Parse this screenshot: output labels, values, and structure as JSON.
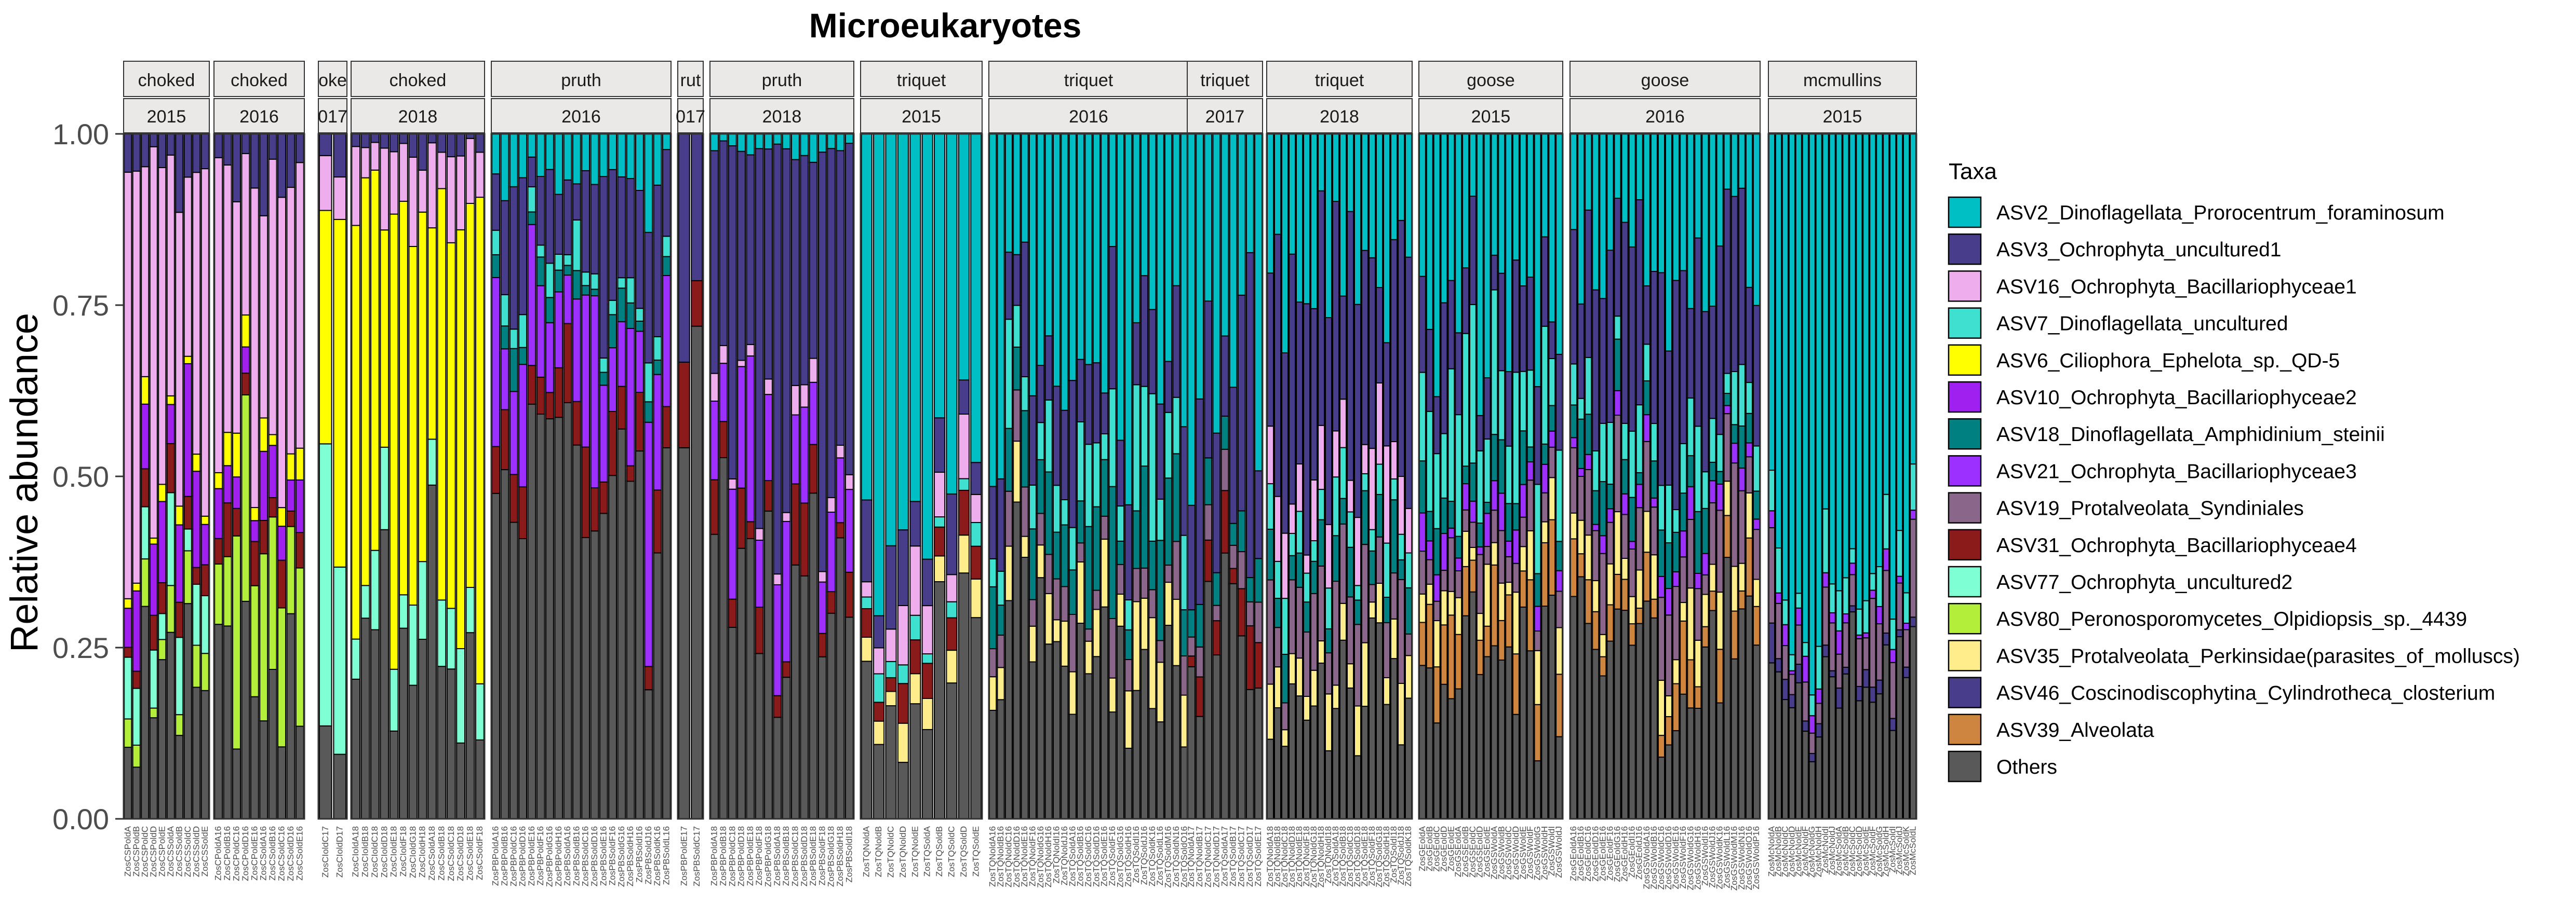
{
  "chart_data": {
    "type": "bar",
    "stacked": true,
    "title": "Microeukaryotes",
    "ylabel": "Relative abundance",
    "xlabel": "",
    "ylim": [
      0,
      1
    ],
    "yticks": [
      "0.00",
      "0.25",
      "0.50",
      "0.75",
      "1.00"
    ],
    "yticks_values": [
      0,
      0.25,
      0.5,
      0.75,
      1.0
    ],
    "grid": false,
    "legend_position": "right",
    "legend_title": "Taxa",
    "taxa": [
      {
        "name": "ASV2_Dinoflagellata_Prorocentrum_foraminosum",
        "color": "#00BFC4"
      },
      {
        "name": "ASV3_Ochrophyta_uncultured1",
        "color": "#483D8B"
      },
      {
        "name": "ASV16_Ochrophyta_Bacillariophyceae1",
        "color": "#EEAEEE"
      },
      {
        "name": "ASV7_Dinoflagellata_uncultured",
        "color": "#40E0D0"
      },
      {
        "name": "ASV6_Ciliophora_Ephelota_sp._QD-5",
        "color": "#FFFF00"
      },
      {
        "name": "ASV10_Ochrophyta_Bacillariophyceae2",
        "color": "#A020F0"
      },
      {
        "name": "ASV18_Dinoflagellata_Amphidinium_steinii",
        "color": "#008080"
      },
      {
        "name": "ASV21_Ochrophyta_Bacillariophyceae3",
        "color": "#9B30FF"
      },
      {
        "name": "ASV19_Protalveolata_Syndiniales",
        "color": "#8B668B"
      },
      {
        "name": "ASV31_Ochrophyta_Bacillariophyceae4",
        "color": "#8B1A1A"
      },
      {
        "name": "ASV77_Ochrophyta_uncultured2",
        "color": "#7FFFD4"
      },
      {
        "name": "ASV80_Peronosporomycetes_Olpidiopsis_sp._4439",
        "color": "#B3EE3A"
      },
      {
        "name": "ASV35_Protalveolata_Perkinsidae(parasites_of_molluscs)",
        "color": "#FFEC8B"
      },
      {
        "name": "ASV46_Coscinodiscophytina_Cylindrotheca_closterium",
        "color": "#483D8B"
      },
      {
        "name": "ASV39_Alveolata",
        "color": "#CD853F"
      },
      {
        "name": "Others",
        "color": "#595959"
      }
    ],
    "facets": [
      {
        "site": "choked",
        "year": "2015",
        "samples": [
          "ZosCSPoldA",
          "ZosCSPoldB",
          "ZosCSPoldC",
          "ZosCSPoldD",
          "ZosCSPoldE",
          "ZosCSSoldA",
          "ZosCSSoldB",
          "ZosCSSoldC",
          "ZosCSSoldD",
          "ZosCSSoldE"
        ]
      },
      {
        "site": "choked",
        "year": "2016",
        "samples": [
          "ZosCPoldA16",
          "ZosCPoldB16",
          "ZosCPoldC16",
          "ZosCPoldD16",
          "ZosCPoldE16",
          "ZosCSoldA16",
          "ZosCSoldB16",
          "ZosCSoldC16",
          "ZosCSoldD16",
          "ZosCSoldE16"
        ]
      },
      {
        "site": "oke",
        "year": "017",
        "samples": [
          "ZosCIoldC17",
          "ZosCIoldD17"
        ]
      },
      {
        "site": "choked",
        "year": "2018",
        "samples": [
          "ZosCIoldA18",
          "ZosCIoldB18",
          "ZosCIoldC18",
          "ZosCIoldD18",
          "ZosCIoldE18",
          "ZosCIoldF18",
          "ZosCIoldG18",
          "ZosCIoldH18",
          "ZosCSoldA18",
          "ZosCSoldB18",
          "ZosCSoldC18",
          "ZosCSoldD18",
          "ZosCSoldE18",
          "ZosCSoldF18"
        ]
      },
      {
        "site": "pruth",
        "year": "2016",
        "samples": [
          "ZosPBPoldA16",
          "ZosPBPoldB16",
          "ZosPBPoldC16",
          "ZosPBPoldD16",
          "ZosPBPoldE16",
          "ZosPBPoldF16",
          "ZosPBPoldG16",
          "ZosPBPoldH16",
          "ZosPBSoldA16",
          "ZosPBSoldB16",
          "ZosPBSoldC16",
          "ZosPBSoldD16",
          "ZosPBSoldE16",
          "ZosPBSoldF16",
          "ZosPBSoldG16",
          "ZosPBSoldH16",
          "ZosPBSoldI16",
          "ZosPBSoldJ16",
          "ZosPBSoldK16",
          "ZosPBSoldL16"
        ]
      },
      {
        "site": "rut",
        "year": "017",
        "samples": [
          "ZosPBPoldE17",
          "ZosPBSoldC17"
        ]
      },
      {
        "site": "pruth",
        "year": "2018",
        "samples": [
          "ZosPBPoldA18",
          "ZosPBPoldB18",
          "ZosPBPoldC18",
          "ZosPBPoldD18",
          "ZosPBPoldE18",
          "ZosPBPoldF18",
          "ZosPBPoldG18",
          "ZosPBSoldA18",
          "ZosPBSoldB18",
          "ZosPBSoldC18",
          "ZosPBSoldD18",
          "ZosPBSoldE18",
          "ZosPBSoldF18",
          "ZosPBSoldG18",
          "ZosPBSoldH18",
          "ZosPBSoldI18"
        ]
      },
      {
        "site": "triquet",
        "year": "2015",
        "samples": [
          "ZosTQNoldA",
          "ZosTQNoldB",
          "ZosTQNoldC",
          "ZosTQNoldD",
          "ZosTQNoldE",
          "ZosTQSoldA",
          "ZosTQSoldB",
          "ZosTQSoldC",
          "ZosTQSoldD",
          "ZosTQSoldE"
        ]
      },
      {
        "site": "triquet",
        "year": "2016",
        "samples": [
          "ZosTQNoldA16",
          "ZosTQNoldB16",
          "ZosTQNoldC16",
          "ZosTQNoldD16",
          "ZosTQNoldE16",
          "ZosTQNoldF16",
          "ZosTQNoldG16",
          "ZosTQNoldH16",
          "ZosTQNoldI16",
          "ZosTQNoldJ16",
          "ZosTQSoldA16",
          "ZosTQSoldB16",
          "ZosTQSoldC16",
          "ZosTQSoldD16",
          "ZosTQSoldE16",
          "ZosTQSoldF16",
          "ZosTQSoldG16",
          "ZosTQSoldH16",
          "ZosTQSoldI16",
          "ZosTQSoldJ16",
          "ZosTQSoldK16",
          "ZosTQSoldL16",
          "ZosTQSoldM16",
          "ZosTQSoldN16",
          "ZosTQSoldO16"
        ]
      },
      {
        "site": "triquet",
        "year": "2017",
        "samples": [
          "ZosTQNoldA17",
          "ZosTQNoldB17",
          "ZosTQNoldC17",
          "ZosTQNoldD17",
          "ZosTQSoldA17",
          "ZosTQSoldB17",
          "ZosTQSoldC17",
          "ZosTQSoldD17",
          "ZosTQSoldE17"
        ]
      },
      {
        "site": "triquet",
        "year": "2018",
        "samples": [
          "ZosTQNoldA18",
          "ZosTQNoldB18",
          "ZosTQNoldC18",
          "ZosTQNoldD18",
          "ZosTQNoldE18",
          "ZosTQNoldF18",
          "ZosTQNoldG18",
          "ZosTQNoldH18",
          "ZosTQNoldI18",
          "ZosTQSoldA18",
          "ZosTQSoldB18",
          "ZosTQSoldC18",
          "ZosTQSoldD18",
          "ZosTQSoldE18",
          "ZosTQSoldF18",
          "ZosTQSoldG18",
          "ZosTQSoldH18",
          "ZosTQSoldI18",
          "ZosTQSoldJ18",
          "ZosTQSoldK18"
        ]
      },
      {
        "site": "goose",
        "year": "2015",
        "samples": [
          "ZosGEoldA",
          "ZosGEoldB",
          "ZosGEoldC",
          "ZosGEoldD",
          "ZosGEoldE",
          "ZosGSEoldA",
          "ZosGSEoldB",
          "ZosGSEoldC",
          "ZosGSEoldD",
          "ZosGSEoldE",
          "ZosGSWoldA",
          "ZosGSWoldB",
          "ZosGSWoldC",
          "ZosGSWoldD",
          "ZosGSWoldE",
          "ZosGSWoldF",
          "ZosGSWoldG",
          "ZosGSWoldH",
          "ZosGSWoldI",
          "ZosGSWoldJ"
        ]
      },
      {
        "site": "goose",
        "year": "2016",
        "samples": [
          "ZosGEoldA16",
          "ZosGEoldB16",
          "ZosGEoldC16",
          "ZosGEoldD16",
          "ZosGEoldE16",
          "ZosGEoldF16",
          "ZosGEoldG16",
          "ZosGEoldH16",
          "ZosGEoldI16",
          "ZosGEoldJ16",
          "ZosGSWoldA16",
          "ZosGSWoldB16",
          "ZosGSWoldC16",
          "ZosGSWoldD16",
          "ZosGSWoldE16",
          "ZosGSWoldF16",
          "ZosGSWoldG16",
          "ZosGSWoldH16",
          "ZosGSWoldI16",
          "ZosGSWoldJ16",
          "ZosGSWoldK16",
          "ZosGSWoldL16",
          "ZosGSWoldM16",
          "ZosGSWoldN16",
          "ZosGSWoldO16",
          "ZosGSWoldP16"
        ]
      },
      {
        "site": "mcmullins",
        "year": "2015",
        "samples": [
          "ZosMcNoldA",
          "ZosMcNoldB",
          "ZosMcNoldC",
          "ZosMcNoldD",
          "ZosMcNoldE",
          "ZosMcNoldF",
          "ZosMcNoldG",
          "ZosMcNoldH",
          "ZosMcNoldI",
          "ZosMcNoldJ",
          "ZosMcSoldA",
          "ZosMcSoldB",
          "ZosMcSoldC",
          "ZosMcSoldD",
          "ZosMcSoldE",
          "ZosMcSoldF",
          "ZosMcSoldG",
          "ZosMcSoldH",
          "ZosMcSoldI",
          "ZosMcSoldJ",
          "ZosMcSoldK",
          "ZosMcSoldL"
        ]
      }
    ],
    "facet_profiles": [
      {
        "Others": 0.18,
        "ASV80_Peronosporomycetes_Olpidiopsis_sp._4439": 0.05,
        "ASV77_Ochrophyta_uncultured2": 0.08,
        "ASV10_Ochrophyta_Bacillariophyceae2": 0.12,
        "ASV31_Ochrophyta_Bacillariophyceae4": 0.04,
        "ASV6_Ciliophora_Ephelota_sp._QD-5": 0.02,
        "ASV16_Ochrophyta_Bacillariophyceae1": 0.45,
        "ASV3_Ochrophyta_uncultured1": 0.06
      },
      {
        "Others": 0.25,
        "ASV80_Peronosporomycetes_Olpidiopsis_sp._4439": 0.2,
        "ASV10_Ochrophyta_Bacillariophyceae2": 0.06,
        "ASV31_Ochrophyta_Bacillariophyceae4": 0.05,
        "ASV6_Ciliophora_Ephelota_sp._QD-5": 0.04,
        "ASV16_Ochrophyta_Bacillariophyceae1": 0.32,
        "ASV3_Ochrophyta_uncultured1": 0.08
      },
      {
        "Others": 0.1,
        "ASV77_Ochrophyta_uncultured2": 0.4,
        "ASV6_Ciliophora_Ephelota_sp._QD-5": 0.35,
        "ASV16_Ochrophyta_Bacillariophyceae1": 0.1,
        "ASV3_Ochrophyta_uncultured1": 0.05
      },
      {
        "Others": 0.25,
        "ASV77_Ochrophyta_uncultured2": 0.08,
        "ASV6_Ciliophora_Ephelota_sp._QD-5": 0.55,
        "ASV16_Ochrophyta_Bacillariophyceae1": 0.1,
        "ASV3_Ochrophyta_uncultured1": 0.02
      },
      {
        "Others": 0.45,
        "ASV21_Ochrophyta_Bacillariophyceae3": 0.2,
        "ASV31_Ochrophyta_Bacillariophyceae4": 0.08,
        "ASV18_Dinoflagellata_Amphidinium_steinii": 0.03,
        "ASV7_Dinoflagellata_uncultured": 0.04,
        "ASV3_Ochrophyta_uncultured1": 0.12,
        "ASV2_Dinoflagellata_Prorocentrum_foraminosum": 0.08
      },
      {
        "Others": 0.7,
        "ASV31_Ochrophyta_Bacillariophyceae4": 0.08,
        "ASV3_Ochrophyta_uncultured1": 0.22
      },
      {
        "Others": 0.3,
        "ASV21_Ochrophyta_Bacillariophyceae3": 0.15,
        "ASV31_Ochrophyta_Bacillariophyceae4": 0.06,
        "ASV3_Ochrophyta_uncultured1": 0.45,
        "ASV16_Ochrophyta_Bacillariophyceae1": 0.02,
        "ASV2_Dinoflagellata_Prorocentrum_foraminosum": 0.02
      },
      {
        "Others": 0.2,
        "ASV31_Ochrophyta_Bacillariophyceae4": 0.04,
        "ASV35_Protalveolata_Perkinsidae(parasites_of_molluscs)": 0.05,
        "ASV7_Dinoflagellata_uncultured": 0.03,
        "ASV16_Ochrophyta_Bacillariophyceae1": 0.08,
        "ASV3_Ochrophyta_uncultured1": 0.1,
        "ASV2_Dinoflagellata_Prorocentrum_foraminosum": 0.5
      },
      {
        "Others": 0.24,
        "ASV35_Protalveolata_Perkinsidae(parasites_of_molluscs)": 0.06,
        "ASV19_Protalveolata_Syndiniales": 0.05,
        "ASV18_Dinoflagellata_Amphidinium_steinii": 0.1,
        "ASV7_Dinoflagellata_uncultured": 0.08,
        "ASV3_Ochrophyta_uncultured1": 0.12,
        "ASV2_Dinoflagellata_Prorocentrum_foraminosum": 0.35
      },
      {
        "Others": 0.22,
        "ASV31_Ochrophyta_Bacillariophyceae4": 0.05,
        "ASV19_Protalveolata_Syndiniales": 0.04,
        "ASV18_Dinoflagellata_Amphidinium_steinii": 0.04,
        "ASV3_Ochrophyta_uncultured1": 0.25,
        "ASV2_Dinoflagellata_Prorocentrum_foraminosum": 0.4
      },
      {
        "Others": 0.22,
        "ASV35_Protalveolata_Perkinsidae(parasites_of_molluscs)": 0.05,
        "ASV16_Ochrophyta_Bacillariophyceae1": 0.08,
        "ASV19_Protalveolata_Syndiniales": 0.08,
        "ASV18_Dinoflagellata_Amphidinium_steinii": 0.06,
        "ASV7_Dinoflagellata_uncultured": 0.05,
        "ASV3_Ochrophyta_uncultured1": 0.28,
        "ASV2_Dinoflagellata_Prorocentrum_foraminosum": 0.18
      },
      {
        "Others": 0.22,
        "ASV39_Alveolata": 0.08,
        "ASV35_Protalveolata_Perkinsidae(parasites_of_molluscs)": 0.05,
        "ASV21_Ochrophyta_Bacillariophyceae3": 0.03,
        "ASV19_Protalveolata_Syndiniales": 0.05,
        "ASV18_Dinoflagellata_Amphidinium_steinii": 0.04,
        "ASV7_Dinoflagellata_uncultured": 0.15,
        "ASV3_Ochrophyta_uncultured1": 0.13,
        "ASV2_Dinoflagellata_Prorocentrum_foraminosum": 0.25
      },
      {
        "Others": 0.25,
        "ASV39_Alveolata": 0.06,
        "ASV35_Protalveolata_Perkinsidae(parasites_of_molluscs)": 0.06,
        "ASV21_Ochrophyta_Bacillariophyceae3": 0.03,
        "ASV19_Protalveolata_Syndiniales": 0.08,
        "ASV18_Dinoflagellata_Amphidinium_steinii": 0.05,
        "ASV7_Dinoflagellata_uncultured": 0.07,
        "ASV3_Ochrophyta_uncultured1": 0.2,
        "ASV2_Dinoflagellata_Prorocentrum_foraminosum": 0.2
      },
      {
        "Others": 0.2,
        "ASV19_Protalveolata_Syndiniales": 0.07,
        "ASV21_Ochrophyta_Bacillariophyceae3": 0.02,
        "ASV7_Dinoflagellata_uncultured": 0.04,
        "ASV46_Coscinodiscophytina_Cylindrotheca_closterium": 0.02,
        "ASV2_Dinoflagellata_Prorocentrum_foraminosum": 0.65
      }
    ]
  }
}
